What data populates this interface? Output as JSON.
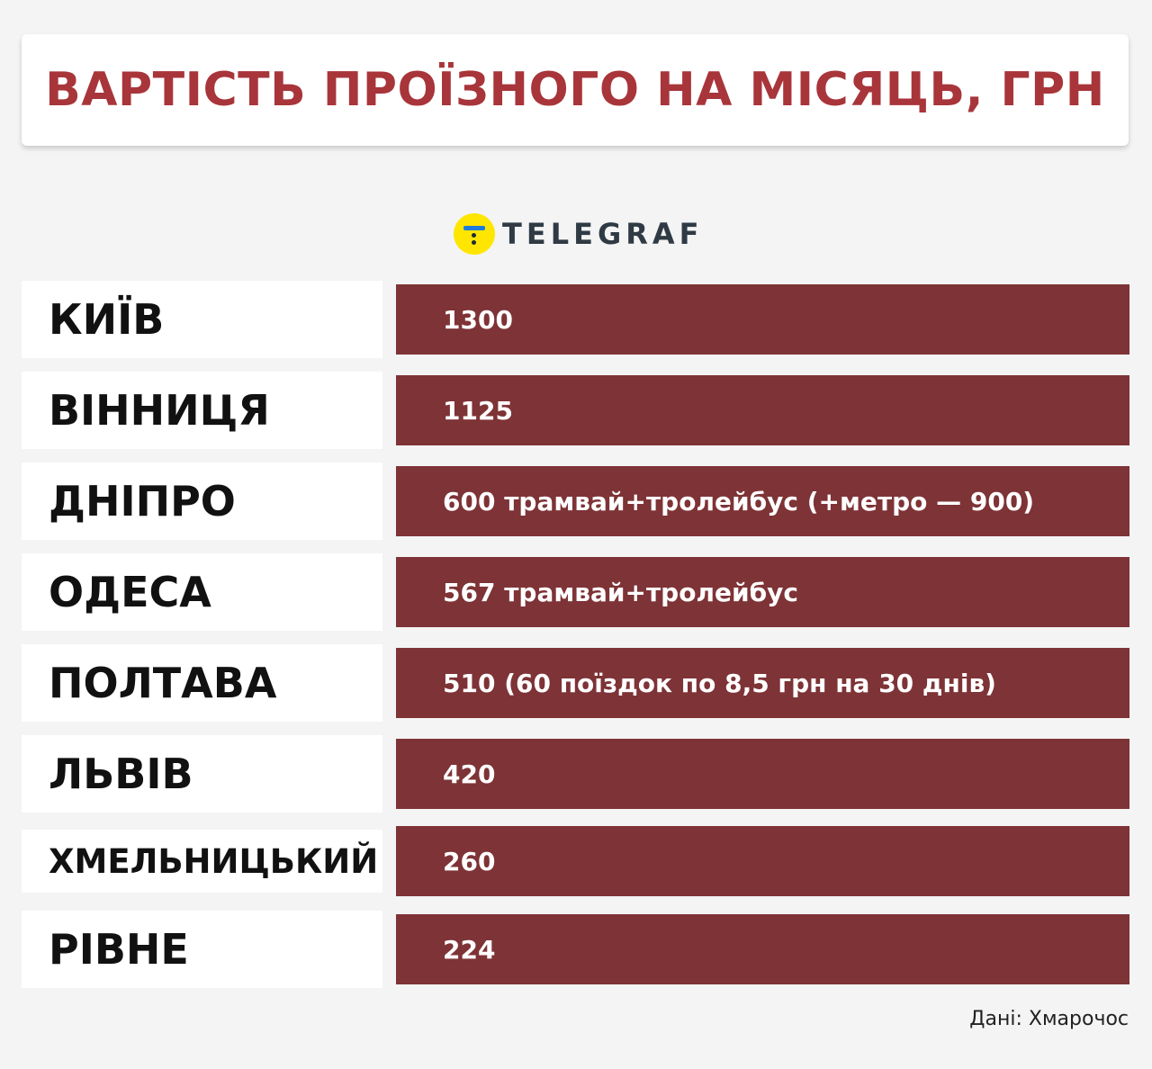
{
  "title": "ВАРТІСТЬ ПРОЇЗНОГО НА МІСЯЦЬ, ГРН",
  "logo": {
    "text": "TELEGRAF",
    "icon": "telegraf-logo-icon"
  },
  "colors": {
    "title": "#a8353a",
    "bar": "#7e3336",
    "background": "#f4f4f4",
    "logo_circle": "#ffe600"
  },
  "rows": [
    {
      "city": "КИЇВ",
      "value": "1300"
    },
    {
      "city": "ВІННИЦЯ",
      "value": "1125"
    },
    {
      "city": "ДНІПРО",
      "value": "600 трамвай+тролейбус (+метро — 900)"
    },
    {
      "city": "ОДЕСА",
      "value": "567 трамвай+тролейбус"
    },
    {
      "city": "ПОЛТАВА",
      "value": "510 (60 поїздок по 8,5 грн на 30 днів)"
    },
    {
      "city": "ЛЬВІВ",
      "value": "420"
    },
    {
      "city": "ХМЕЛЬНИЦЬКИЙ",
      "value": "260"
    },
    {
      "city": "РІВНЕ",
      "value": "224"
    }
  ],
  "source": "Дані: Хмарочос"
}
